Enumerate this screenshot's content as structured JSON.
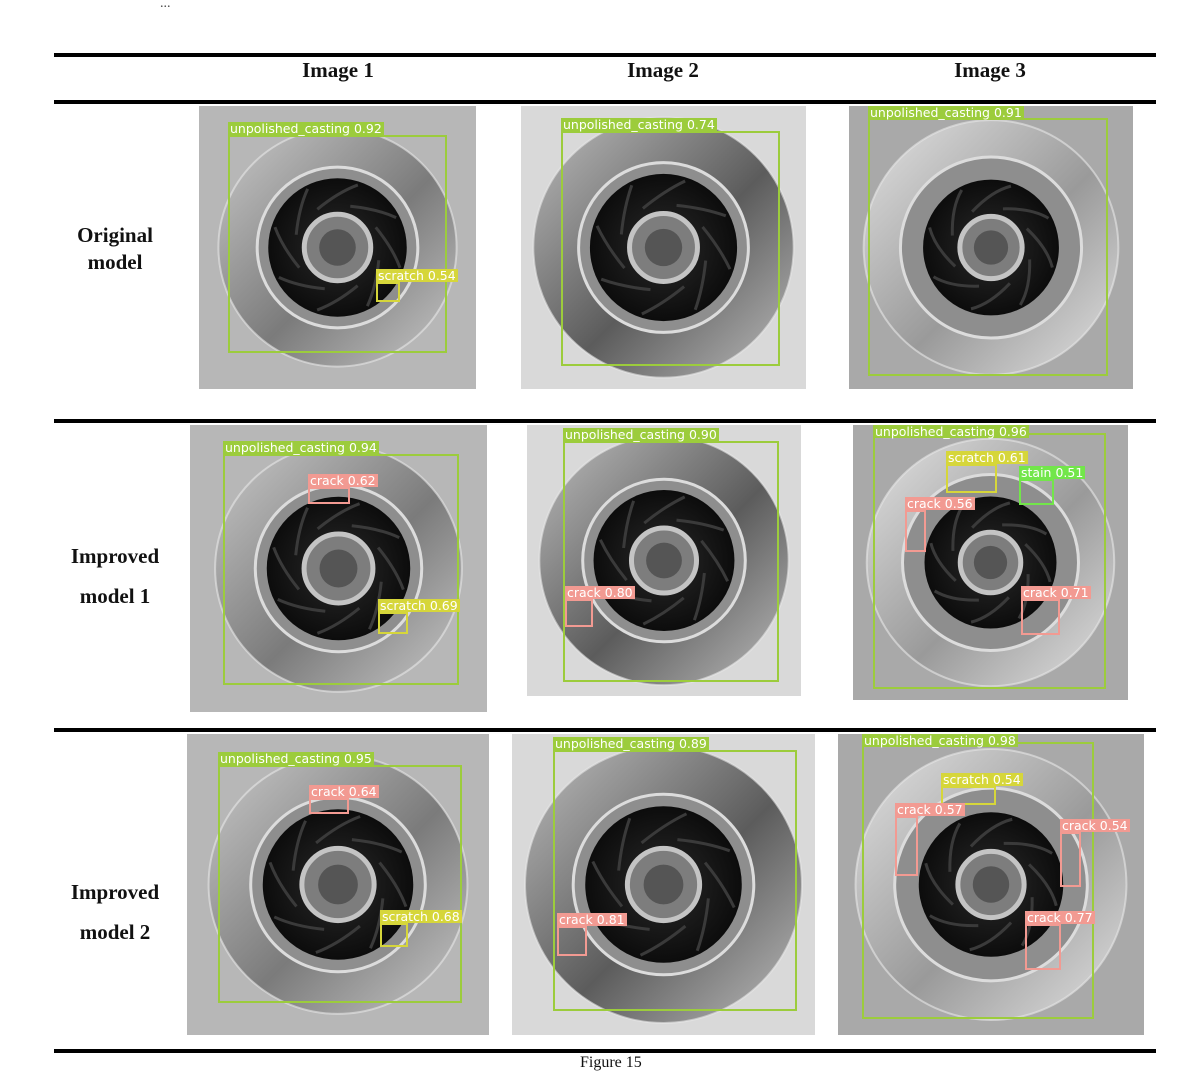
{
  "header_cut_text": "...",
  "columns": [
    "Image 1",
    "Image 2",
    "Image 3"
  ],
  "rows": [
    {
      "label": [
        "Original",
        "model"
      ],
      "cells": [
        {
          "variant": "light-disc",
          "detections": [
            {
              "label": "unpolished_casting",
              "score": "0.92",
              "cls": "casting"
            },
            {
              "label": "scratch",
              "score": "0.54",
              "cls": "scratch"
            }
          ]
        },
        {
          "variant": "wide-disc",
          "detections": [
            {
              "label": "unpolished_casting",
              "score": "0.74",
              "cls": "casting"
            }
          ]
        },
        {
          "variant": "bright-disc",
          "detections": [
            {
              "label": "unpolished_casting",
              "score": "0.91",
              "cls": "casting"
            }
          ]
        }
      ]
    },
    {
      "label": [
        "Improved",
        "model 1"
      ],
      "cells": [
        {
          "variant": "light-disc",
          "detections": [
            {
              "label": "unpolished_casting",
              "score": "0.94",
              "cls": "casting"
            },
            {
              "label": "crack",
              "score": "0.62",
              "cls": "crack"
            },
            {
              "label": "scratch",
              "score": "0.69",
              "cls": "scratch"
            }
          ]
        },
        {
          "variant": "wide-disc",
          "detections": [
            {
              "label": "unpolished_casting",
              "score": "0.90",
              "cls": "casting"
            },
            {
              "label": "crack",
              "score": "0.80",
              "cls": "crack"
            }
          ]
        },
        {
          "variant": "bright-disc",
          "detections": [
            {
              "label": "unpolished_casting",
              "score": "0.96",
              "cls": "casting"
            },
            {
              "label": "scratch",
              "score": "0.61",
              "cls": "scratch"
            },
            {
              "label": "stain",
              "score": "0.51",
              "cls": "stain"
            },
            {
              "label": "crack",
              "score": "0.56",
              "cls": "crack"
            },
            {
              "label": "crack",
              "score": "0.71",
              "cls": "crack"
            }
          ]
        }
      ]
    },
    {
      "label": [
        "Improved",
        "model 2"
      ],
      "cells": [
        {
          "variant": "light-disc",
          "detections": [
            {
              "label": "unpolished_casting",
              "score": "0.95",
              "cls": "casting"
            },
            {
              "label": "crack",
              "score": "0.64",
              "cls": "crack"
            },
            {
              "label": "scratch",
              "score": "0.68",
              "cls": "scratch"
            }
          ]
        },
        {
          "variant": "wide-disc",
          "detections": [
            {
              "label": "unpolished_casting",
              "score": "0.89",
              "cls": "casting"
            },
            {
              "label": "crack",
              "score": "0.81",
              "cls": "crack"
            }
          ]
        },
        {
          "variant": "bright-disc",
          "detections": [
            {
              "label": "unpolished_casting",
              "score": "0.98",
              "cls": "casting"
            },
            {
              "label": "scratch",
              "score": "0.54",
              "cls": "scratch"
            },
            {
              "label": "crack",
              "score": "0.57",
              "cls": "crack"
            },
            {
              "label": "crack",
              "score": "0.54",
              "cls": "crack"
            },
            {
              "label": "crack",
              "score": "0.77",
              "cls": "crack"
            }
          ]
        }
      ]
    }
  ],
  "class_colors": {
    "casting": "#9ccc3c",
    "scratch": "#d6d63a",
    "crack": "#f29a92",
    "stain": "#72e64a"
  },
  "figure_caption": "Figure 15"
}
